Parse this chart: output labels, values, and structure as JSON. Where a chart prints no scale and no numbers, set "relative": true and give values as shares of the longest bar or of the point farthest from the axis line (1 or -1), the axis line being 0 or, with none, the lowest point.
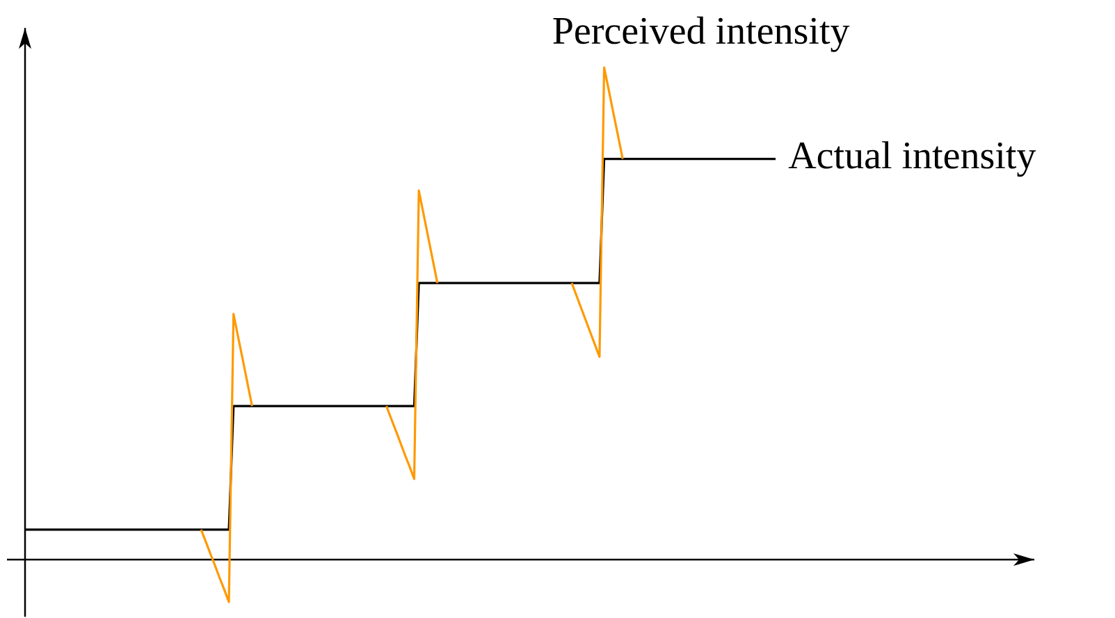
{
  "chart_data": {
    "type": "line",
    "relative": true,
    "categories": [
      null,
      null,
      null,
      null,
      null,
      null,
      null,
      null,
      null,
      null,
      null,
      null,
      null,
      null,
      null,
      null,
      null,
      null,
      null,
      null,
      null,
      null,
      null,
      null,
      null,
      null,
      null,
      null,
      null,
      null,
      null,
      null,
      null,
      null,
      null,
      null,
      null,
      null,
      null,
      null,
      null,
      null,
      null,
      null,
      null,
      null,
      null,
      null,
      null,
      null,
      null,
      null,
      null,
      null,
      null,
      null,
      null,
      null,
      null,
      null,
      null,
      null,
      null,
      null,
      null,
      null,
      null,
      null,
      null,
      null,
      null,
      null,
      null,
      null,
      null,
      null,
      null,
      null,
      null,
      null,
      null,
      null,
      null,
      null,
      null,
      null,
      null,
      null,
      null,
      null,
      null,
      null,
      null,
      null,
      null,
      null,
      null,
      null,
      null,
      null,
      null,
      null,
      null,
      null,
      null,
      null,
      null,
      null,
      null,
      null,
      null,
      null,
      null,
      null,
      null,
      null,
      null,
      null,
      null,
      null,
      null,
      null,
      null,
      null,
      null,
      null,
      null,
      null,
      null,
      null,
      null,
      null,
      null,
      null,
      null,
      null,
      null,
      null,
      null,
      null,
      null,
      null,
      null,
      null,
      null,
      null,
      null,
      null,
      null,
      null,
      null,
      null,
      null,
      null,
      null,
      null,
      null,
      null,
      null,
      null,
      null,
      null,
      null
    ],
    "series": [
      {
        "name": "Actual intensity",
        "color": "#000000",
        "values": [
          0.061,
          0.061,
          0.061,
          0.061,
          0.061,
          0.061,
          0.061,
          0.061,
          0.061,
          0.061,
          0.061,
          0.061,
          0.061,
          0.061,
          0.061,
          0.061,
          0.061,
          0.061,
          0.061,
          0.061,
          0.061,
          0.061,
          0.061,
          0.061,
          0.061,
          0.061,
          0.061,
          0.061,
          0.061,
          0.061,
          0.061,
          0.061,
          0.061,
          0.061,
          0.061,
          0.061,
          0.061,
          0.061,
          0.061,
          0.061,
          0.061,
          0.061,
          0.061,
          0.061,
          0.061,
          0.312,
          0.312,
          0.312,
          0.312,
          0.312,
          0.312,
          0.312,
          0.312,
          0.312,
          0.312,
          0.312,
          0.312,
          0.312,
          0.312,
          0.312,
          0.312,
          0.312,
          0.312,
          0.312,
          0.312,
          0.312,
          0.312,
          0.312,
          0.312,
          0.312,
          0.312,
          0.312,
          0.312,
          0.312,
          0.312,
          0.312,
          0.312,
          0.312,
          0.312,
          0.312,
          0.312,
          0.312,
          0.312,
          0.312,
          0.312,
          0.562,
          0.562,
          0.562,
          0.562,
          0.562,
          0.562,
          0.562,
          0.562,
          0.562,
          0.562,
          0.562,
          0.562,
          0.562,
          0.562,
          0.562,
          0.562,
          0.562,
          0.562,
          0.562,
          0.562,
          0.562,
          0.562,
          0.562,
          0.562,
          0.562,
          0.562,
          0.562,
          0.562,
          0.562,
          0.562,
          0.562,
          0.562,
          0.562,
          0.562,
          0.562,
          0.562,
          0.562,
          0.562,
          0.562,
          0.562,
          0.814,
          0.814,
          0.814,
          0.814,
          0.814,
          0.814,
          0.814,
          0.814,
          0.814,
          0.814,
          0.814,
          0.814,
          0.814,
          0.814,
          0.814,
          0.814,
          0.814,
          0.814,
          0.814,
          0.814,
          0.814,
          0.814,
          0.814,
          0.814,
          0.814,
          0.814,
          0.814,
          0.814,
          0.814,
          0.814,
          0.814,
          0.814,
          0.814,
          0.814,
          0.814,
          0.814,
          0.814,
          0.814
        ]
      },
      {
        "name": "Perceived intensity",
        "color": "#ff9900",
        "values": [
          null,
          null,
          null,
          null,
          null,
          null,
          null,
          null,
          null,
          null,
          null,
          null,
          null,
          null,
          null,
          null,
          null,
          null,
          null,
          null,
          null,
          null,
          null,
          null,
          null,
          null,
          null,
          null,
          null,
          null,
          null,
          null,
          null,
          null,
          null,
          null,
          null,
          null,
          0.061,
          0.037,
          0.012,
          -0.012,
          -0.037,
          -0.061,
          -0.086,
          0.499,
          0.452,
          0.406,
          0.359,
          0.312,
          null,
          null,
          null,
          null,
          null,
          null,
          null,
          null,
          null,
          null,
          null,
          null,
          null,
          null,
          null,
          null,
          null,
          null,
          null,
          null,
          null,
          null,
          null,
          null,
          null,
          null,
          null,
          null,
          0.312,
          0.287,
          0.263,
          0.238,
          0.213,
          0.189,
          0.164,
          0.75,
          0.703,
          0.656,
          0.609,
          0.562,
          null,
          null,
          null,
          null,
          null,
          null,
          null,
          null,
          null,
          null,
          null,
          null,
          null,
          null,
          null,
          null,
          null,
          null,
          null,
          null,
          null,
          null,
          null,
          null,
          null,
          null,
          null,
          null,
          0.562,
          0.537,
          0.512,
          0.487,
          0.462,
          0.437,
          0.412,
          1.0,
          0.954,
          0.907,
          0.861,
          0.814,
          null,
          null,
          null,
          null,
          null,
          null,
          null,
          null,
          null,
          null,
          null,
          null,
          null,
          null,
          null,
          null,
          null,
          null,
          null,
          null,
          null,
          null,
          null,
          null,
          null,
          null,
          null,
          null,
          null,
          null,
          null,
          null,
          null
        ]
      }
    ]
  }
}
